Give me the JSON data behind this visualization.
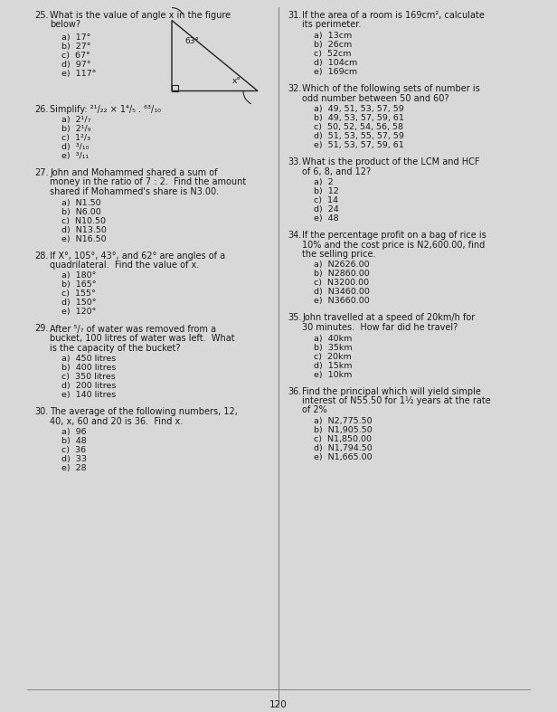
{
  "bg_color": "#d8d8d8",
  "page_number": "120",
  "font_color": "#1a1a1a",
  "left_questions": [
    {
      "number": "25.",
      "text": "What is the value of angle x in the figure\nbelow?",
      "has_triangle": true,
      "options": [
        "a)  17°",
        "b)  27°",
        "c)  67°",
        "d)  97°",
        "e)  117°"
      ]
    },
    {
      "number": "26.",
      "text": "Simplify: ²¹/₂₂ × 1⁴/₅ . ⁶³/₁₀",
      "has_triangle": false,
      "options": [
        "a)  2¹/₇",
        "b)  2¹/₉",
        "c)  1²/₃",
        "d)  ³/₁₀",
        "e)  ³/₁₁"
      ]
    },
    {
      "number": "27.",
      "text": "John and Mohammed shared a sum of\nmoney in the ratio of 7 : 2.  Find the amount\nshared if Mohammed's share is N3.00.",
      "has_triangle": false,
      "options": [
        "a)  N1.50",
        "b)  N6.00",
        "c)  N10.50",
        "d)  N13.50",
        "e)  N16.50"
      ]
    },
    {
      "number": "28.",
      "text": "If X°, 105°, 43°, and 62° are angles of a\nquadrilateral.  Find the value of x.",
      "has_triangle": false,
      "options": [
        "a)  180°",
        "b)  165°",
        "c)  155°",
        "d)  150°",
        "e)  120°"
      ]
    },
    {
      "number": "29.",
      "text": "After ⁵/₇ of water was removed from a\nbucket, 100 litres of water was left.  What\nis the capacity of the bucket?",
      "has_triangle": false,
      "options": [
        "a)  450 litres",
        "b)  400 litres",
        "c)  350 litres",
        "d)  200 litres",
        "e)  140 litres"
      ]
    },
    {
      "number": "30.",
      "text": "The average of the following numbers, 12,\n40, x, 60 and 20 is 36.  Find x.",
      "has_triangle": false,
      "options": [
        "a)  96",
        "b)  48",
        "c)  36",
        "d)  33",
        "e)  28"
      ]
    }
  ],
  "right_questions": [
    {
      "number": "31.",
      "text": "If the area of a room is 169cm², calculate\nits perimeter.",
      "options": [
        "a)  13cm",
        "b)  26cm",
        "c)  52cm",
        "d)  104cm",
        "e)  169cm"
      ]
    },
    {
      "number": "32.",
      "text": "Which of the following sets of number is\nodd number between 50 and 60?",
      "options": [
        "a)  49, 51, 53, 57, 59",
        "b)  49, 53, 57, 59, 61",
        "c)  50, 52, 54, 56, 58",
        "d)  51, 53, 55, 57, 59",
        "e)  51, 53, 57, 59, 61"
      ]
    },
    {
      "number": "33.",
      "text": "What is the product of the LCM and HCF\nof 6, 8, and 12?",
      "options": [
        "a)  2",
        "b)  12",
        "c)  14",
        "d)  24",
        "e)  48"
      ]
    },
    {
      "number": "34.",
      "text": "If the percentage profit on a bag of rice is\n10% and the cost price is N2,600.00, find\nthe selling price.",
      "options": [
        "a)  N2626.00",
        "b)  N2860.00",
        "c)  N3200.00",
        "d)  N3460.00",
        "e)  N3660.00"
      ]
    },
    {
      "number": "35.",
      "text": "John travelled at a speed of 20km/h for\n30 minutes.  How far did he travel?",
      "options": [
        "a)  40km",
        "b)  35km",
        "c)  20km",
        "d)  15km",
        "e)  10km"
      ]
    },
    {
      "number": "36.",
      "text": "Find the principal which will yield simple\ninterest of N55.50 for 1½ years at the rate\nof 2%",
      "options": [
        "a)  N2,775.50",
        "b)  N1,905.50",
        "c)  N1,850.00",
        "d)  N1,794.50",
        "e)  N1,665.00"
      ]
    }
  ]
}
